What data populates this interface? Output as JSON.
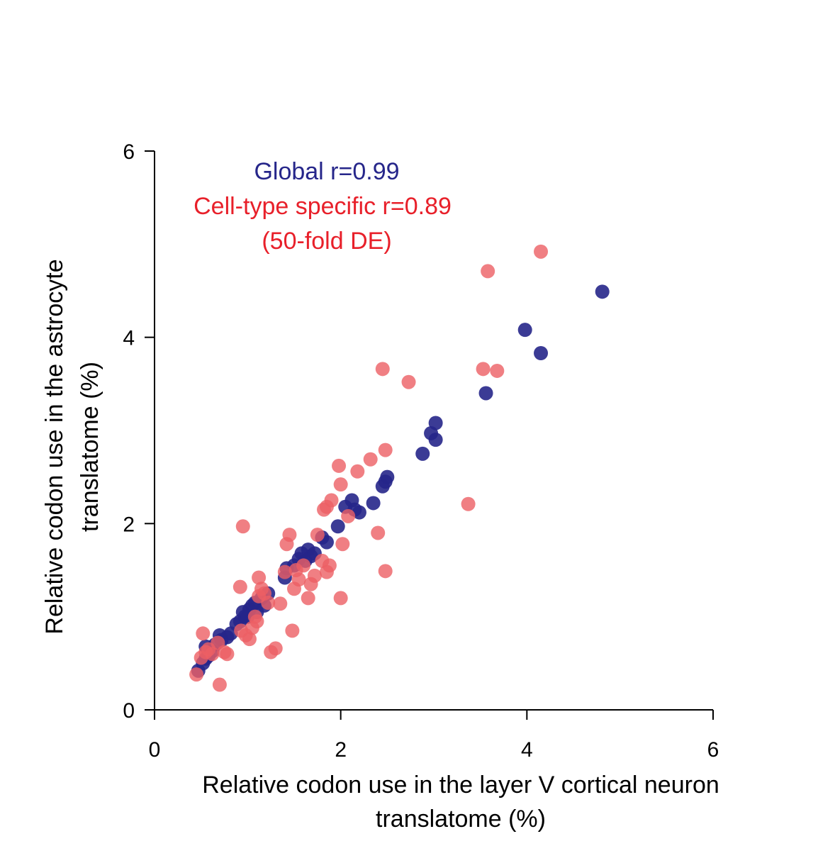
{
  "chart_data": {
    "type": "scatter",
    "xlabel": [
      "Relative codon use in the layer V cortical neuron",
      "translatome (%)"
    ],
    "ylabel": [
      "Relative codon use in the astrocyte",
      "translatome (%)"
    ],
    "xlim": [
      0,
      6
    ],
    "ylim": [
      0,
      6
    ],
    "xticks": [
      0,
      2,
      4,
      6
    ],
    "yticks": [
      0,
      2,
      4,
      6
    ],
    "annotations": [
      {
        "text": "Global r=0.99",
        "color": "#26268a"
      },
      {
        "text": "Cell-type specific r=0.89",
        "color": "#e8202a"
      },
      {
        "text": "(50-fold DE)",
        "color": "#e8202a"
      }
    ],
    "series": [
      {
        "name": "Global",
        "color": "#26268a",
        "points": [
          [
            0.47,
            0.42
          ],
          [
            0.52,
            0.5
          ],
          [
            0.55,
            0.55
          ],
          [
            0.58,
            0.58
          ],
          [
            0.55,
            0.68
          ],
          [
            0.62,
            0.63
          ],
          [
            0.65,
            0.7
          ],
          [
            0.7,
            0.8
          ],
          [
            0.72,
            0.75
          ],
          [
            0.78,
            0.78
          ],
          [
            0.82,
            0.82
          ],
          [
            0.88,
            0.92
          ],
          [
            0.92,
            0.95
          ],
          [
            0.95,
            1.05
          ],
          [
            0.97,
            1.0
          ],
          [
            1.0,
            1.0
          ],
          [
            1.02,
            1.08
          ],
          [
            1.05,
            1.12
          ],
          [
            1.08,
            1.15
          ],
          [
            1.1,
            1.05
          ],
          [
            1.15,
            1.2
          ],
          [
            1.18,
            1.12
          ],
          [
            1.22,
            1.25
          ],
          [
            1.4,
            1.42
          ],
          [
            1.42,
            1.52
          ],
          [
            1.5,
            1.55
          ],
          [
            1.55,
            1.62
          ],
          [
            1.58,
            1.68
          ],
          [
            1.62,
            1.6
          ],
          [
            1.65,
            1.72
          ],
          [
            1.68,
            1.65
          ],
          [
            1.72,
            1.68
          ],
          [
            1.8,
            1.85
          ],
          [
            1.85,
            1.8
          ],
          [
            1.97,
            1.97
          ],
          [
            2.05,
            2.18
          ],
          [
            2.12,
            2.25
          ],
          [
            2.15,
            2.15
          ],
          [
            2.2,
            2.12
          ],
          [
            2.35,
            2.22
          ],
          [
            2.45,
            2.4
          ],
          [
            2.48,
            2.45
          ],
          [
            2.5,
            2.5
          ],
          [
            2.88,
            2.75
          ],
          [
            2.97,
            2.97
          ],
          [
            3.02,
            3.08
          ],
          [
            3.02,
            2.9
          ],
          [
            3.56,
            3.4
          ],
          [
            3.98,
            4.08
          ],
          [
            4.15,
            3.83
          ],
          [
            4.81,
            4.49
          ]
        ]
      },
      {
        "name": "Cell-type specific",
        "color": "#ec5f64",
        "points": [
          [
            0.45,
            0.38
          ],
          [
            0.5,
            0.56
          ],
          [
            0.52,
            0.82
          ],
          [
            0.55,
            0.62
          ],
          [
            0.58,
            0.65
          ],
          [
            0.62,
            0.6
          ],
          [
            0.68,
            0.72
          ],
          [
            0.7,
            0.27
          ],
          [
            0.75,
            0.62
          ],
          [
            0.78,
            0.6
          ],
          [
            0.92,
            1.32
          ],
          [
            0.93,
            0.85
          ],
          [
            0.95,
            1.97
          ],
          [
            0.98,
            0.8
          ],
          [
            1.02,
            0.76
          ],
          [
            1.05,
            0.88
          ],
          [
            1.08,
            1.0
          ],
          [
            1.1,
            0.95
          ],
          [
            1.12,
            1.42
          ],
          [
            1.12,
            1.22
          ],
          [
            1.15,
            1.3
          ],
          [
            1.18,
            1.25
          ],
          [
            1.22,
            1.15
          ],
          [
            1.25,
            0.62
          ],
          [
            1.3,
            0.66
          ],
          [
            1.35,
            1.14
          ],
          [
            1.4,
            1.48
          ],
          [
            1.42,
            1.78
          ],
          [
            1.45,
            1.88
          ],
          [
            1.48,
            0.85
          ],
          [
            1.5,
            1.3
          ],
          [
            1.52,
            1.5
          ],
          [
            1.55,
            1.4
          ],
          [
            1.6,
            1.55
          ],
          [
            1.65,
            1.2
          ],
          [
            1.68,
            1.35
          ],
          [
            1.72,
            1.44
          ],
          [
            1.75,
            1.88
          ],
          [
            1.8,
            1.6
          ],
          [
            1.82,
            2.15
          ],
          [
            1.85,
            2.18
          ],
          [
            1.85,
            1.48
          ],
          [
            1.88,
            1.55
          ],
          [
            1.9,
            2.25
          ],
          [
            1.98,
            2.62
          ],
          [
            2.0,
            2.42
          ],
          [
            2.0,
            1.2
          ],
          [
            2.02,
            1.78
          ],
          [
            2.08,
            2.08
          ],
          [
            2.18,
            2.56
          ],
          [
            2.32,
            2.69
          ],
          [
            2.4,
            1.9
          ],
          [
            2.45,
            3.66
          ],
          [
            2.48,
            2.79
          ],
          [
            2.48,
            1.49
          ],
          [
            2.73,
            3.52
          ],
          [
            3.37,
            2.21
          ],
          [
            3.53,
            3.66
          ],
          [
            3.58,
            4.71
          ],
          [
            3.68,
            3.64
          ],
          [
            4.15,
            4.92
          ]
        ]
      }
    ]
  }
}
